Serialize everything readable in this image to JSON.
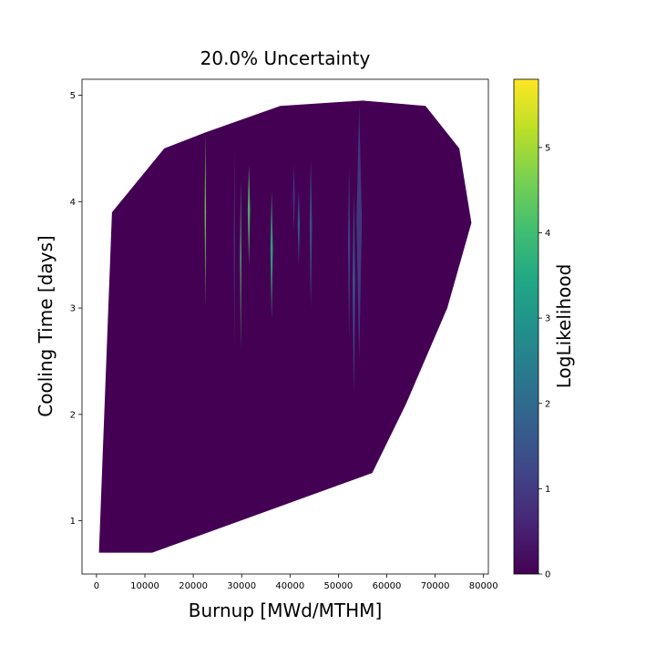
{
  "chart_data": {
    "type": "contour",
    "title": "20.0% Uncertainty",
    "xlabel": "Burnup [MWd/MTHM]",
    "ylabel": "Cooling Time [days]",
    "xlim": [
      -3000,
      81000
    ],
    "ylim": [
      0.5,
      5.15
    ],
    "xticks": [
      0,
      10000,
      20000,
      30000,
      40000,
      50000,
      60000,
      70000,
      80000
    ],
    "yticks": [
      1,
      2,
      3,
      4,
      5
    ],
    "grid": false,
    "region_boundary": [
      [
        500,
        0.7
      ],
      [
        11500,
        0.7
      ],
      [
        57000,
        1.45
      ],
      [
        64000,
        2.1
      ],
      [
        72500,
        3.0
      ],
      [
        77500,
        3.8
      ],
      [
        75000,
        4.5
      ],
      [
        68000,
        4.9
      ],
      [
        55000,
        4.95
      ],
      [
        38000,
        4.9
      ],
      [
        22500,
        4.65
      ],
      [
        14000,
        4.5
      ],
      [
        3200,
        3.9
      ],
      [
        500,
        0.7
      ]
    ],
    "background_value": 0,
    "features": [
      {
        "x": 22500,
        "y_min": 3.0,
        "y_max": 4.65,
        "value": 4.6,
        "width": 280
      },
      {
        "x": 28500,
        "y_min": 2.6,
        "y_max": 4.5,
        "value": 0.8,
        "width": 300
      },
      {
        "x": 29800,
        "y_min": 2.6,
        "y_max": 4.2,
        "value": 4.2,
        "width": 280
      },
      {
        "x": 31500,
        "y_min": 3.4,
        "y_max": 4.35,
        "value": 4.2,
        "width": 500
      },
      {
        "x": 36200,
        "y_min": 2.9,
        "y_max": 4.1,
        "value": 3.7,
        "width": 500
      },
      {
        "x": 40800,
        "y_min": 3.7,
        "y_max": 4.35,
        "value": 1.0,
        "width": 400
      },
      {
        "x": 41800,
        "y_min": 3.4,
        "y_max": 4.1,
        "value": 1.8,
        "width": 450
      },
      {
        "x": 44300,
        "y_min": 3.0,
        "y_max": 4.4,
        "value": 1.6,
        "width": 500
      },
      {
        "x": 52200,
        "y_min": 2.7,
        "y_max": 4.35,
        "value": 1.2,
        "width": 450
      },
      {
        "x": 53200,
        "y_min": 2.2,
        "y_max": 4.1,
        "value": 1.6,
        "width": 550
      },
      {
        "x": 54300,
        "y_min": 2.5,
        "y_max": 4.9,
        "value": 1.1,
        "width": 1100
      }
    ],
    "colorbar": {
      "label": "LogLikelihood",
      "colormap": "viridis",
      "range": [
        0,
        5.8
      ],
      "ticks": [
        0,
        1,
        2,
        3,
        4,
        5
      ]
    }
  }
}
